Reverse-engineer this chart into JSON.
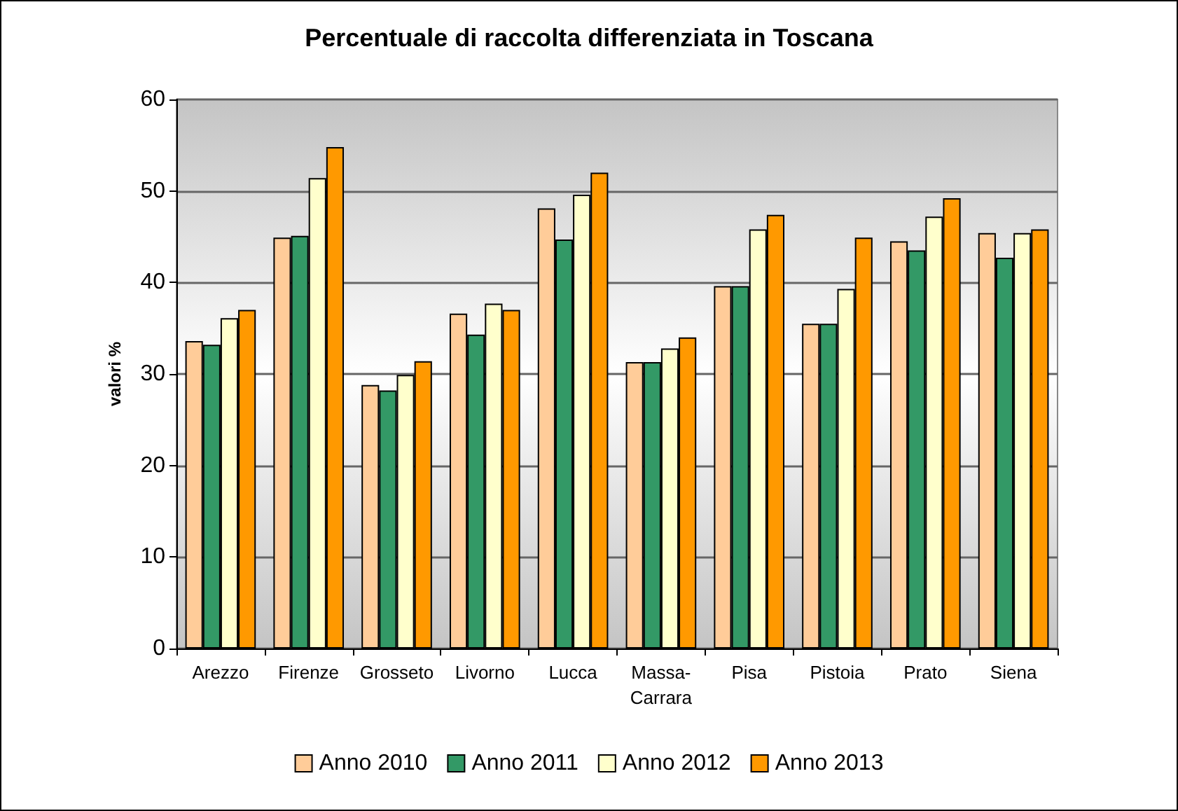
{
  "chart_data": {
    "type": "bar",
    "title": "Percentuale di raccolta differenziata in Toscana",
    "ylabel": "valori %",
    "categories": [
      "Arezzo",
      "Firenze",
      "Grosseto",
      "Livorno",
      "Lucca",
      "Massa-Carrara",
      "Pisa",
      "Pistoia",
      "Prato",
      "Siena"
    ],
    "series": [
      {
        "name": "Anno 2010",
        "color": "#ffcc99",
        "values": [
          33.6,
          44.9,
          28.8,
          36.6,
          48.1,
          31.3,
          39.6,
          35.5,
          44.5,
          45.4
        ]
      },
      {
        "name": "Anno 2011",
        "color": "#339966",
        "values": [
          33.2,
          45.1,
          28.2,
          34.3,
          44.7,
          31.3,
          39.6,
          35.5,
          43.5,
          42.7
        ]
      },
      {
        "name": "Anno 2012",
        "color": "#ffffcc",
        "values": [
          36.1,
          51.4,
          29.9,
          37.7,
          49.6,
          32.8,
          45.8,
          39.3,
          47.2,
          45.4
        ]
      },
      {
        "name": "Anno 2013",
        "color": "#ff9900",
        "values": [
          37.0,
          54.8,
          31.4,
          37.0,
          52.0,
          34.0,
          47.4,
          44.9,
          49.2,
          45.8
        ]
      }
    ],
    "ylim": [
      0,
      60
    ],
    "yticks": [
      0,
      10,
      20,
      30,
      40,
      50,
      60
    ],
    "grid": "y",
    "legend": "bottom"
  }
}
